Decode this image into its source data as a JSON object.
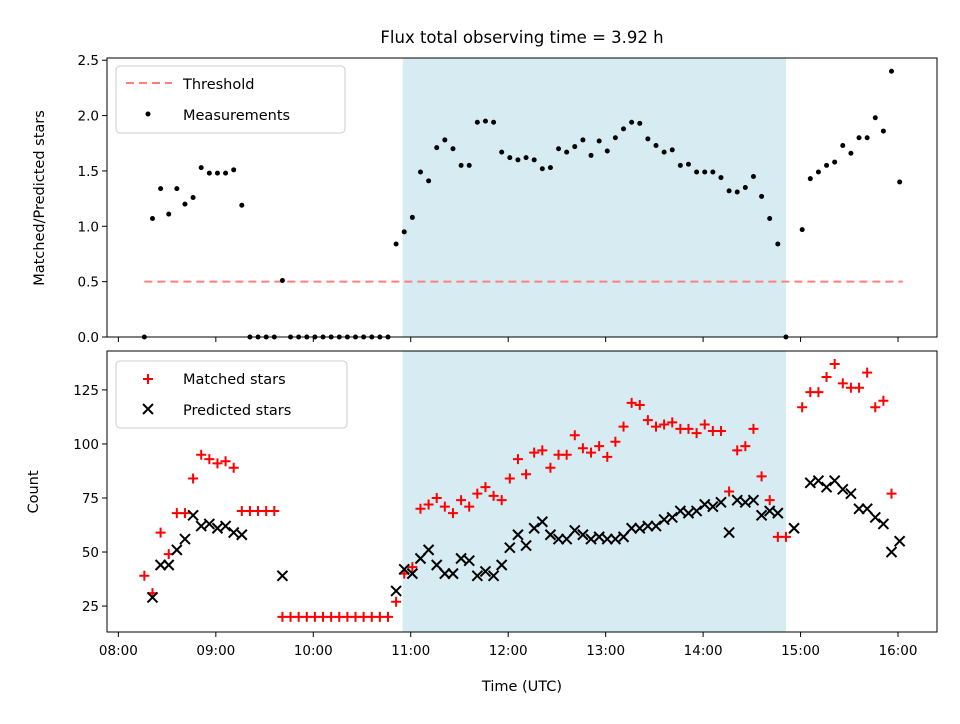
{
  "figure": {
    "title": "Flux total observing time = 3.92 h",
    "xlabel": "Time (UTC)",
    "x_ticks": [
      "08:00",
      "09:00",
      "10:00",
      "11:00",
      "12:00",
      "13:00",
      "14:00",
      "15:00",
      "16:00"
    ],
    "shade_color": "#add8e6"
  },
  "chart_data": [
    {
      "type": "scatter",
      "ylabel": "Matched/Predicted stars",
      "xlim": [
        "07:53",
        "16:24"
      ],
      "ylim": [
        0,
        2.52
      ],
      "y_ticks": [
        "0.0",
        "0.5",
        "1.0",
        "1.5",
        "2.0",
        "2.5"
      ],
      "legend_position": "upper-left",
      "shaded_interval": [
        "10:55",
        "14:51"
      ],
      "threshold": {
        "name": "Threshold",
        "value": 0.5,
        "x_range": [
          "08:16",
          "16:03"
        ],
        "color": "#ff7f7f"
      },
      "series": [
        {
          "name": "Measurements",
          "color": "#000000",
          "marker": "dot",
          "points": [
            [
              "08:16",
              0.0
            ],
            [
              "08:21",
              1.07
            ],
            [
              "08:26",
              1.34
            ],
            [
              "08:31",
              1.11
            ],
            [
              "08:36",
              1.34
            ],
            [
              "08:41",
              1.2
            ],
            [
              "08:46",
              1.26
            ],
            [
              "08:51",
              1.53
            ],
            [
              "08:56",
              1.48
            ],
            [
              "09:01",
              1.48
            ],
            [
              "09:06",
              1.48
            ],
            [
              "09:11",
              1.51
            ],
            [
              "09:16",
              1.19
            ],
            [
              "09:21",
              0.0
            ],
            [
              "09:26",
              0.0
            ],
            [
              "09:31",
              0.0
            ],
            [
              "09:36",
              0.0
            ],
            [
              "09:41",
              0.51
            ],
            [
              "09:46",
              0.0
            ],
            [
              "09:51",
              0.0
            ],
            [
              "09:56",
              0.0
            ],
            [
              "10:01",
              0.0
            ],
            [
              "10:06",
              0.0
            ],
            [
              "10:11",
              0.0
            ],
            [
              "10:16",
              0.0
            ],
            [
              "10:21",
              0.0
            ],
            [
              "10:26",
              0.0
            ],
            [
              "10:31",
              0.0
            ],
            [
              "10:36",
              0.0
            ],
            [
              "10:41",
              0.0
            ],
            [
              "10:46",
              0.0
            ],
            [
              "10:51",
              0.84
            ],
            [
              "10:56",
              0.95
            ],
            [
              "11:01",
              1.08
            ],
            [
              "11:06",
              1.49
            ],
            [
              "11:11",
              1.41
            ],
            [
              "11:16",
              1.71
            ],
            [
              "11:21",
              1.78
            ],
            [
              "11:26",
              1.7
            ],
            [
              "11:31",
              1.55
            ],
            [
              "11:36",
              1.55
            ],
            [
              "11:41",
              1.94
            ],
            [
              "11:46",
              1.95
            ],
            [
              "11:51",
              1.94
            ],
            [
              "11:56",
              1.67
            ],
            [
              "12:01",
              1.62
            ],
            [
              "12:06",
              1.6
            ],
            [
              "12:11",
              1.62
            ],
            [
              "12:16",
              1.6
            ],
            [
              "12:21",
              1.52
            ],
            [
              "12:26",
              1.53
            ],
            [
              "12:31",
              1.7
            ],
            [
              "12:36",
              1.67
            ],
            [
              "12:41",
              1.72
            ],
            [
              "12:46",
              1.78
            ],
            [
              "12:51",
              1.64
            ],
            [
              "12:56",
              1.77
            ],
            [
              "13:01",
              1.68
            ],
            [
              "13:06",
              1.8
            ],
            [
              "13:11",
              1.88
            ],
            [
              "13:16",
              1.94
            ],
            [
              "13:21",
              1.93
            ],
            [
              "13:26",
              1.79
            ],
            [
              "13:31",
              1.73
            ],
            [
              "13:36",
              1.67
            ],
            [
              "13:41",
              1.69
            ],
            [
              "13:46",
              1.55
            ],
            [
              "13:51",
              1.56
            ],
            [
              "13:56",
              1.49
            ],
            [
              "14:01",
              1.49
            ],
            [
              "14:06",
              1.49
            ],
            [
              "14:11",
              1.44
            ],
            [
              "14:16",
              1.32
            ],
            [
              "14:21",
              1.31
            ],
            [
              "14:26",
              1.35
            ],
            [
              "14:31",
              1.45
            ],
            [
              "14:36",
              1.27
            ],
            [
              "14:41",
              1.07
            ],
            [
              "14:46",
              0.84
            ],
            [
              "14:51",
              0.0
            ],
            [
              "15:01",
              0.97
            ],
            [
              "15:06",
              1.43
            ],
            [
              "15:11",
              1.49
            ],
            [
              "15:16",
              1.55
            ],
            [
              "15:21",
              1.58
            ],
            [
              "15:26",
              1.73
            ],
            [
              "15:31",
              1.66
            ],
            [
              "15:36",
              1.8
            ],
            [
              "15:41",
              1.8
            ],
            [
              "15:46",
              1.98
            ],
            [
              "15:51",
              1.86
            ],
            [
              "15:56",
              2.4
            ],
            [
              "16:01",
              1.4
            ]
          ]
        }
      ]
    },
    {
      "type": "scatter",
      "ylabel": "Count",
      "xlim": [
        "07:53",
        "16:24"
      ],
      "ylim": [
        13,
        143
      ],
      "y_ticks": [
        "25",
        "50",
        "75",
        "100",
        "125"
      ],
      "legend_position": "upper-left",
      "shaded_interval": [
        "10:55",
        "14:51"
      ],
      "series": [
        {
          "name": "Matched stars",
          "color": "#ff0000",
          "marker": "plus",
          "points": [
            [
              "08:16",
              39
            ],
            [
              "08:21",
              31
            ],
            [
              "08:26",
              59
            ],
            [
              "08:31",
              49
            ],
            [
              "08:36",
              68
            ],
            [
              "08:41",
              68
            ],
            [
              "08:46",
              84
            ],
            [
              "08:51",
              95
            ],
            [
              "08:56",
              93
            ],
            [
              "09:01",
              91
            ],
            [
              "09:06",
              92
            ],
            [
              "09:11",
              89
            ],
            [
              "09:16",
              69
            ],
            [
              "09:21",
              69
            ],
            [
              "09:26",
              69
            ],
            [
              "09:31",
              69
            ],
            [
              "09:36",
              69
            ],
            [
              "09:41",
              20
            ],
            [
              "09:46",
              20
            ],
            [
              "09:51",
              20
            ],
            [
              "09:56",
              20
            ],
            [
              "10:01",
              20
            ],
            [
              "10:06",
              20
            ],
            [
              "10:11",
              20
            ],
            [
              "10:16",
              20
            ],
            [
              "10:21",
              20
            ],
            [
              "10:26",
              20
            ],
            [
              "10:31",
              20
            ],
            [
              "10:36",
              20
            ],
            [
              "10:41",
              20
            ],
            [
              "10:46",
              20
            ],
            [
              "10:51",
              27
            ],
            [
              "10:56",
              40
            ],
            [
              "11:01",
              43
            ],
            [
              "11:06",
              70
            ],
            [
              "11:11",
              72
            ],
            [
              "11:16",
              75
            ],
            [
              "11:21",
              71
            ],
            [
              "11:26",
              68
            ],
            [
              "11:31",
              74
            ],
            [
              "11:36",
              71
            ],
            [
              "11:41",
              77
            ],
            [
              "11:46",
              80
            ],
            [
              "11:51",
              76
            ],
            [
              "11:56",
              74
            ],
            [
              "12:01",
              84
            ],
            [
              "12:06",
              93
            ],
            [
              "12:11",
              86
            ],
            [
              "12:16",
              96
            ],
            [
              "12:21",
              97
            ],
            [
              "12:26",
              89
            ],
            [
              "12:31",
              95
            ],
            [
              "12:36",
              95
            ],
            [
              "12:41",
              104
            ],
            [
              "12:46",
              98
            ],
            [
              "12:51",
              96
            ],
            [
              "12:56",
              99
            ],
            [
              "13:01",
              94
            ],
            [
              "13:06",
              101
            ],
            [
              "13:11",
              108
            ],
            [
              "13:16",
              119
            ],
            [
              "13:21",
              118
            ],
            [
              "13:26",
              111
            ],
            [
              "13:31",
              108
            ],
            [
              "13:36",
              109
            ],
            [
              "13:41",
              110
            ],
            [
              "13:46",
              107
            ],
            [
              "13:51",
              107
            ],
            [
              "13:56",
              105
            ],
            [
              "14:01",
              109
            ],
            [
              "14:06",
              106
            ],
            [
              "14:11",
              106
            ],
            [
              "14:16",
              78
            ],
            [
              "14:21",
              97
            ],
            [
              "14:26",
              99
            ],
            [
              "14:31",
              107
            ],
            [
              "14:36",
              85
            ],
            [
              "14:41",
              74
            ],
            [
              "14:46",
              57
            ],
            [
              "14:51",
              57
            ],
            [
              "15:01",
              117
            ],
            [
              "15:06",
              124
            ],
            [
              "15:11",
              124
            ],
            [
              "15:16",
              131
            ],
            [
              "15:21",
              137
            ],
            [
              "15:26",
              128
            ],
            [
              "15:31",
              126
            ],
            [
              "15:36",
              126
            ],
            [
              "15:41",
              133
            ],
            [
              "15:46",
              117
            ],
            [
              "15:51",
              120
            ],
            [
              "15:56",
              77
            ]
          ]
        },
        {
          "name": "Predicted stars",
          "color": "#000000",
          "marker": "x",
          "points": [
            [
              "08:21",
              29
            ],
            [
              "08:26",
              44
            ],
            [
              "08:31",
              44
            ],
            [
              "08:36",
              51
            ],
            [
              "08:41",
              56
            ],
            [
              "08:46",
              67
            ],
            [
              "08:51",
              62
            ],
            [
              "08:56",
              63
            ],
            [
              "09:01",
              61
            ],
            [
              "09:06",
              62
            ],
            [
              "09:11",
              59
            ],
            [
              "09:16",
              58
            ],
            [
              "09:41",
              39
            ],
            [
              "10:51",
              32
            ],
            [
              "10:56",
              42
            ],
            [
              "11:01",
              40
            ],
            [
              "11:06",
              47
            ],
            [
              "11:11",
              51
            ],
            [
              "11:16",
              44
            ],
            [
              "11:21",
              40
            ],
            [
              "11:26",
              40
            ],
            [
              "11:31",
              47
            ],
            [
              "11:36",
              46
            ],
            [
              "11:41",
              39
            ],
            [
              "11:46",
              41
            ],
            [
              "11:51",
              39
            ],
            [
              "11:56",
              44
            ],
            [
              "12:01",
              52
            ],
            [
              "12:06",
              58
            ],
            [
              "12:11",
              53
            ],
            [
              "12:16",
              61
            ],
            [
              "12:21",
              64
            ],
            [
              "12:26",
              58
            ],
            [
              "12:31",
              56
            ],
            [
              "12:36",
              56
            ],
            [
              "12:41",
              60
            ],
            [
              "12:46",
              58
            ],
            [
              "12:51",
              56
            ],
            [
              "12:56",
              57
            ],
            [
              "13:01",
              56
            ],
            [
              "13:06",
              56
            ],
            [
              "13:11",
              57
            ],
            [
              "13:16",
              61
            ],
            [
              "13:21",
              61
            ],
            [
              "13:26",
              62
            ],
            [
              "13:31",
              62
            ],
            [
              "13:36",
              65
            ],
            [
              "13:41",
              66
            ],
            [
              "13:46",
              69
            ],
            [
              "13:51",
              68
            ],
            [
              "13:56",
              69
            ],
            [
              "14:01",
              72
            ],
            [
              "14:06",
              71
            ],
            [
              "14:11",
              73
            ],
            [
              "14:16",
              59
            ],
            [
              "14:21",
              74
            ],
            [
              "14:26",
              73
            ],
            [
              "14:31",
              74
            ],
            [
              "14:36",
              67
            ],
            [
              "14:41",
              69
            ],
            [
              "14:46",
              68
            ],
            [
              "14:56",
              61
            ],
            [
              "15:06",
              82
            ],
            [
              "15:11",
              83
            ],
            [
              "15:16",
              80
            ],
            [
              "15:21",
              83
            ],
            [
              "15:26",
              79
            ],
            [
              "15:31",
              77
            ],
            [
              "15:36",
              70
            ],
            [
              "15:41",
              70
            ],
            [
              "15:46",
              66
            ],
            [
              "15:51",
              63
            ],
            [
              "15:56",
              50
            ],
            [
              "16:01",
              55
            ]
          ]
        }
      ]
    }
  ]
}
